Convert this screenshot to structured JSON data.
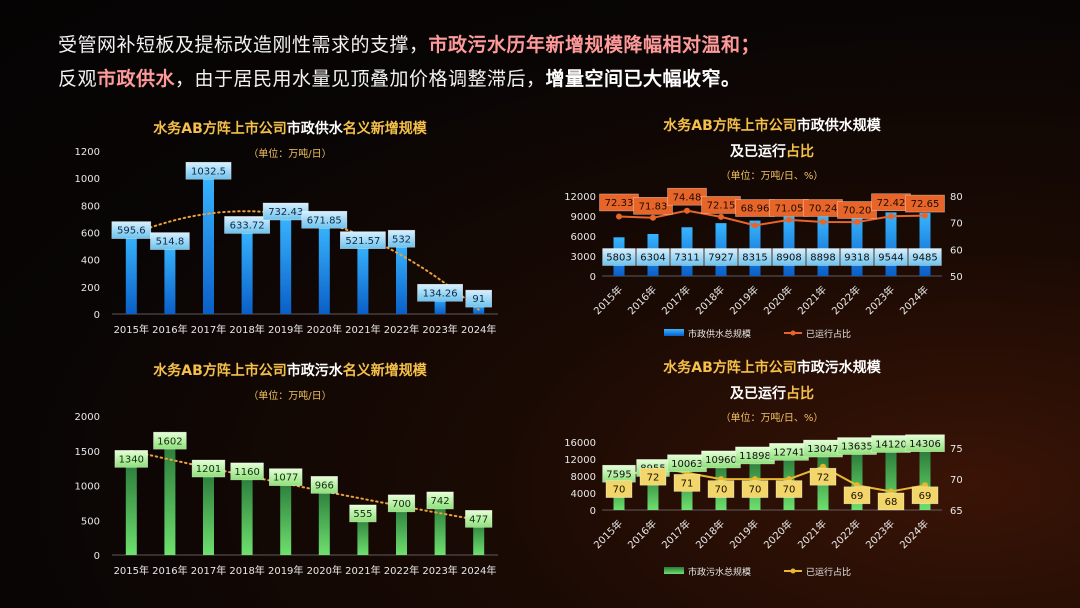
{
  "headline": {
    "line1_a": "受管网补短板及提标改造刚性需求的支撑，",
    "line1_b": "市政污水历年新增规模降幅相对温和；",
    "line2_a": "反观",
    "line2_b": "市政供水",
    "line2_c": "，由于居民用水量见顶叠加价格调整滞后，",
    "line2_d": "增量空间已大幅收窄。"
  },
  "colors": {
    "title_gold": "#f5c04a",
    "title_orange": "#ffa63a",
    "subtitle": "#f0c060",
    "axis": "#e8e8e8",
    "blue": "#1e8fe8",
    "green": "#3fb43f",
    "orange_line": "#e8652a",
    "gold_line": "#e8b830",
    "trend": "#e8a03a"
  },
  "chart_data": [
    {
      "type": "bar",
      "title_a": "水务AB方阵上市公司",
      "title_b": "市政供水",
      "title_c": "名义新增规模",
      "subtitle": "（单位：万吨/日）",
      "categories": [
        "2015年",
        "2016年",
        "2017年",
        "2018年",
        "2019年",
        "2020年",
        "2021年",
        "2022年",
        "2023年",
        "2024年"
      ],
      "values": [
        595.6,
        514.8,
        1032.5,
        633.72,
        732.43,
        671.85,
        521.57,
        532,
        134.26,
        91
      ],
      "labels": [
        "595.6",
        "514.8",
        "1032.5",
        "633.72",
        "732.43",
        "671.85",
        "521.57",
        "532",
        "134.26",
        "91"
      ],
      "yticks": [
        "1200",
        "1000",
        "800",
        "600",
        "400",
        "200",
        "0"
      ],
      "ylim": [
        0,
        1200
      ],
      "trend": "polynomial dotted"
    },
    {
      "type": "bar+line",
      "title_a": "水务AB方阵上市公司",
      "title_b": "市政供水规模",
      "title_line2_a": "及已运行",
      "title_line2_b": "占比",
      "subtitle": "（单位：万吨/日、%）",
      "categories": [
        "2015年",
        "2016年",
        "2017年",
        "2018年",
        "2019年",
        "2020年",
        "2021年",
        "2022年",
        "2023年",
        "2024年"
      ],
      "series": [
        {
          "name": "市政供水总规模",
          "values": [
            5803,
            6304,
            7311,
            7927,
            8315,
            8908,
            8898,
            9318,
            9544,
            9485
          ],
          "labels": [
            "5803",
            "6304",
            "7311",
            "7927",
            "8315",
            "8908",
            "8898",
            "9318",
            "9544",
            "9485"
          ]
        },
        {
          "name": "已运行占比",
          "values": [
            72.33,
            71.83,
            74.48,
            72.15,
            68.96,
            71.05,
            70.24,
            70.2,
            72.42,
            72.65
          ],
          "labels": [
            "72.33",
            "71.83",
            "74.48",
            "72.15",
            "68.96",
            "71.05",
            "70.24",
            "70.20",
            "72.42",
            "72.65"
          ]
        }
      ],
      "yticks": [
        "12000",
        "9000",
        "6000",
        "3000",
        "0"
      ],
      "ylim": [
        0,
        12000
      ],
      "y2ticks": [
        "80",
        "70",
        "60",
        "50"
      ],
      "y2lim": [
        50,
        80
      ]
    },
    {
      "type": "bar",
      "title_a": "水务AB方阵上市公司",
      "title_b": "市政污水",
      "title_c": "名义新增规模",
      "subtitle": "（单位：万吨/日）",
      "categories": [
        "2015年",
        "2016年",
        "2017年",
        "2018年",
        "2019年",
        "2020年",
        "2021年",
        "2022年",
        "2023年",
        "2024年"
      ],
      "values": [
        1340,
        1602,
        1201,
        1160,
        1077,
        966,
        555,
        700,
        742,
        477
      ],
      "labels": [
        "1340",
        "1602",
        "1201",
        "1160",
        "1077",
        "966",
        "555",
        "700",
        "742",
        "477"
      ],
      "yticks": [
        "2000",
        "1500",
        "1000",
        "500",
        "0"
      ],
      "ylim": [
        0,
        2000
      ],
      "trend": "polynomial dotted"
    },
    {
      "type": "bar+line",
      "title_a": "水务AB方阵上市公司",
      "title_b": "市政污水规模",
      "title_line2_a": "及已运行",
      "title_line2_b": "占比",
      "subtitle": "（单位：万吨/日、%）",
      "categories": [
        "2015年",
        "2016年",
        "2017年",
        "2018年",
        "2019年",
        "2020年",
        "2021年",
        "2022年",
        "2023年",
        "2024年"
      ],
      "series": [
        {
          "name": "市政污水总规模",
          "values": [
            7595,
            8955,
            10063,
            10960,
            11898,
            12741,
            13047,
            13635,
            14120,
            14306
          ],
          "labels": [
            "7595",
            "8955",
            "10063",
            "10960",
            "11898",
            "12741",
            "13047",
            "13635",
            "14120",
            "14306"
          ]
        },
        {
          "name": "已运行占比",
          "values": [
            70,
            72,
            71,
            70,
            70,
            70,
            72,
            69,
            68,
            69
          ],
          "labels": [
            "70",
            "72",
            "71",
            "70",
            "70",
            "70",
            "72",
            "69",
            "68",
            "69"
          ]
        }
      ],
      "yticks": [
        "16000",
        "12000",
        "8000",
        "4000",
        "0"
      ],
      "ylim": [
        0,
        16000
      ],
      "y2ticks": [
        "75",
        "70",
        "65"
      ],
      "y2lim": [
        65,
        76
      ]
    }
  ]
}
